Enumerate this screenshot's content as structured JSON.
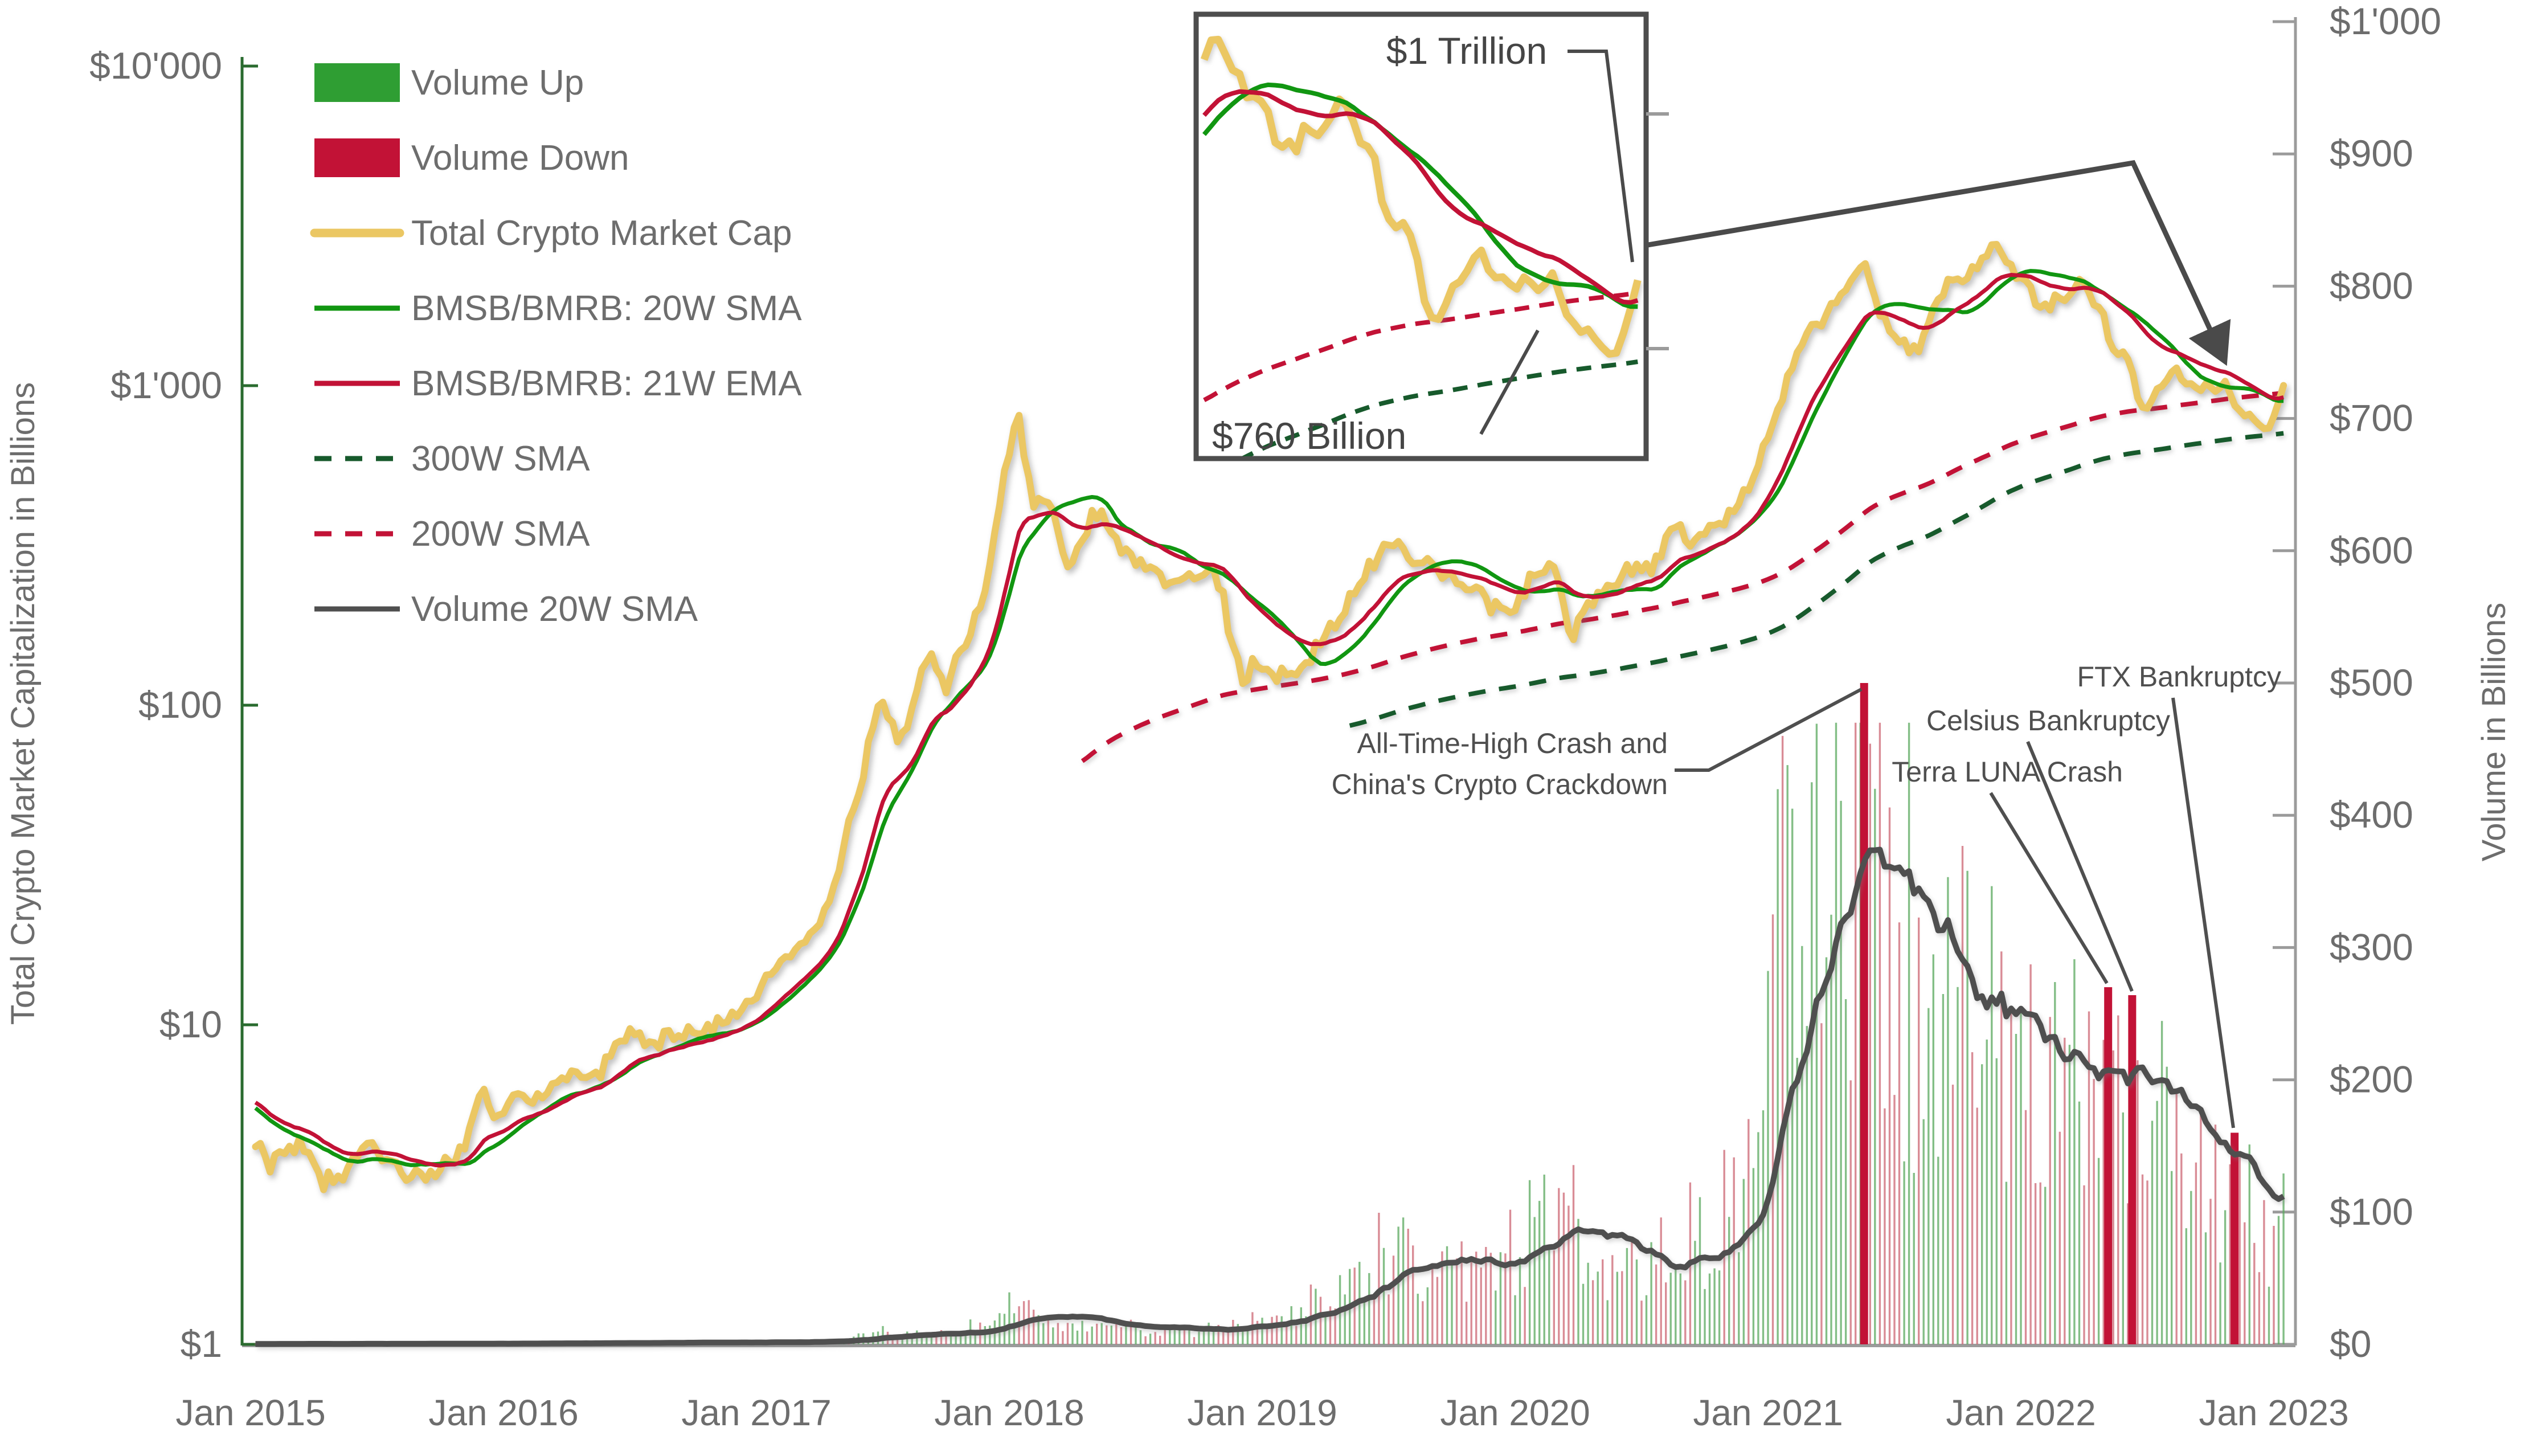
{
  "chart_data": {
    "type": "line",
    "title": "",
    "left_axis": {
      "label": "Total Crypto Market Capitalization in Billions",
      "scale": "log",
      "ticks": [
        {
          "label": "$10'000",
          "value": 10000
        },
        {
          "label": "$1'000",
          "value": 1000
        },
        {
          "label": "$100",
          "value": 100
        },
        {
          "label": "$10",
          "value": 10
        },
        {
          "label": "$1",
          "value": 1
        }
      ]
    },
    "right_axis": {
      "label": "Volume in Billions",
      "scale": "linear",
      "ticks": [
        {
          "label": "$1'000",
          "value": 1000
        },
        {
          "label": "$900",
          "value": 900
        },
        {
          "label": "$800",
          "value": 800
        },
        {
          "label": "$700",
          "value": 700
        },
        {
          "label": "$600",
          "value": 600
        },
        {
          "label": "$500",
          "value": 500
        },
        {
          "label": "$400",
          "value": 400
        },
        {
          "label": "$300",
          "value": 300
        },
        {
          "label": "$200",
          "value": 200
        },
        {
          "label": "$100",
          "value": 100
        },
        {
          "label": "$0",
          "value": 0
        }
      ]
    },
    "x_axis": {
      "ticks": [
        {
          "label": "Jan 2015",
          "t": 2015
        },
        {
          "label": "Jan 2016",
          "t": 2016
        },
        {
          "label": "Jan 2017",
          "t": 2017
        },
        {
          "label": "Jan 2018",
          "t": 2018
        },
        {
          "label": "Jan 2019",
          "t": 2019
        },
        {
          "label": "Jan 2020",
          "t": 2020
        },
        {
          "label": "Jan 2021",
          "t": 2021
        },
        {
          "label": "Jan 2022",
          "t": 2022
        },
        {
          "label": "Jan 2023",
          "t": 2023
        }
      ]
    },
    "legend": [
      {
        "label": "Volume Up",
        "swatch": "rect",
        "color": "#2f9e33"
      },
      {
        "label": "Volume Down",
        "swatch": "rect",
        "color": "#C21236"
      },
      {
        "label": "Total Crypto Market Cap",
        "swatch": "thickline",
        "color": "#EBC763"
      },
      {
        "label": "BMSB/BMRB: 20W SMA",
        "swatch": "line",
        "color": "#119611"
      },
      {
        "label": "BMSB/BMRB: 21W EMA",
        "swatch": "line",
        "color": "#C21236"
      },
      {
        "label": "300W SMA",
        "swatch": "dash",
        "color": "#175A2C"
      },
      {
        "label": "200W SMA",
        "swatch": "dash",
        "color": "#C21236"
      },
      {
        "label": "Volume 20W SMA",
        "swatch": "line",
        "color": "#4F4F4F"
      }
    ],
    "series_notes": {
      "market_cap": "Total crypto market capitalization, $ billions, anchor points [decimal_year, value]; weekly line interpolated",
      "bmsb_20w_sma": "computed 20-week simple moving average of market cap",
      "bmsb_21w_ema": "computed 21-week exponential moving average of market cap",
      "sma_200w": "computed 200-week SMA, drawn from Apr 2018",
      "sma_300w": "computed 300-week SMA, drawn from May 2019",
      "volume": "weekly total volume, $ billions, level anchors [decimal_year, typical_weekly_value]",
      "volume_20w_sma": "computed 20-week SMA of volume"
    },
    "market_cap_anchors": [
      [
        2013.5,
        1.1
      ],
      [
        2013.75,
        1.5
      ],
      [
        2013.95,
        15
      ],
      [
        2014.05,
        13
      ],
      [
        2014.2,
        9.5
      ],
      [
        2014.45,
        11
      ],
      [
        2014.6,
        8.2
      ],
      [
        2014.7,
        6.5
      ],
      [
        2014.85,
        5.2
      ],
      [
        2014.97,
        4.7
      ],
      [
        2015.0,
        4.6
      ],
      [
        2015.08,
        3.6
      ],
      [
        2015.2,
        4.3
      ],
      [
        2015.28,
        3.2
      ],
      [
        2015.38,
        3.5
      ],
      [
        2015.45,
        4.4
      ],
      [
        2015.5,
        3.9
      ],
      [
        2015.6,
        3.5
      ],
      [
        2015.67,
        3.3
      ],
      [
        2015.75,
        3.5
      ],
      [
        2015.8,
        3.9
      ],
      [
        2015.85,
        4.1
      ],
      [
        2015.9,
        6.2
      ],
      [
        2015.97,
        5.2
      ],
      [
        2016.04,
        5.9
      ],
      [
        2016.12,
        5.7
      ],
      [
        2016.2,
        6.6
      ],
      [
        2016.3,
        6.8
      ],
      [
        2016.38,
        7.2
      ],
      [
        2016.45,
        8.9
      ],
      [
        2016.5,
        9.4
      ],
      [
        2016.58,
        8.9
      ],
      [
        2016.7,
        9.2
      ],
      [
        2016.8,
        9.7
      ],
      [
        2016.9,
        10.5
      ],
      [
        2016.97,
        12.0
      ],
      [
        2017.04,
        14.5
      ],
      [
        2017.1,
        15.5
      ],
      [
        2017.17,
        17.5
      ],
      [
        2017.22,
        19.5
      ],
      [
        2017.28,
        24
      ],
      [
        2017.33,
        30
      ],
      [
        2017.37,
        45
      ],
      [
        2017.42,
        60
      ],
      [
        2017.45,
        78
      ],
      [
        2017.48,
        95
      ],
      [
        2017.5,
        108
      ],
      [
        2017.53,
        88
      ],
      [
        2017.56,
        72
      ],
      [
        2017.6,
        90
      ],
      [
        2017.65,
        125
      ],
      [
        2017.7,
        148
      ],
      [
        2017.72,
        128
      ],
      [
        2017.76,
        112
      ],
      [
        2017.8,
        145
      ],
      [
        2017.85,
        170
      ],
      [
        2017.88,
        195
      ],
      [
        2017.9,
        215
      ],
      [
        2017.93,
        300
      ],
      [
        2017.96,
        420
      ],
      [
        2017.99,
        580
      ],
      [
        2018.02,
        740
      ],
      [
        2018.035,
        800
      ],
      [
        2018.05,
        700
      ],
      [
        2018.08,
        480
      ],
      [
        2018.1,
        390
      ],
      [
        2018.13,
        460
      ],
      [
        2018.16,
        420
      ],
      [
        2018.2,
        330
      ],
      [
        2018.23,
        255
      ],
      [
        2018.26,
        290
      ],
      [
        2018.3,
        340
      ],
      [
        2018.33,
        410
      ],
      [
        2018.37,
        385
      ],
      [
        2018.4,
        340
      ],
      [
        2018.45,
        300
      ],
      [
        2018.5,
        290
      ],
      [
        2018.55,
        265
      ],
      [
        2018.6,
        250
      ],
      [
        2018.65,
        240
      ],
      [
        2018.7,
        255
      ],
      [
        2018.75,
        260
      ],
      [
        2018.8,
        255
      ],
      [
        2018.84,
        225
      ],
      [
        2018.87,
        170
      ],
      [
        2018.9,
        150
      ],
      [
        2018.93,
        110
      ],
      [
        2018.96,
        140
      ],
      [
        2019.0,
        128
      ],
      [
        2019.05,
        120
      ],
      [
        2019.1,
        125
      ],
      [
        2019.15,
        133
      ],
      [
        2019.2,
        145
      ],
      [
        2019.25,
        168
      ],
      [
        2019.3,
        180
      ],
      [
        2019.35,
        218
      ],
      [
        2019.4,
        248
      ],
      [
        2019.45,
        288
      ],
      [
        2019.48,
        330
      ],
      [
        2019.52,
        310
      ],
      [
        2019.55,
        340
      ],
      [
        2019.58,
        290
      ],
      [
        2019.62,
        268
      ],
      [
        2019.66,
        292
      ],
      [
        2019.7,
        258
      ],
      [
        2019.75,
        242
      ],
      [
        2019.8,
        222
      ],
      [
        2019.85,
        230
      ],
      [
        2019.9,
        202
      ],
      [
        2019.95,
        194
      ],
      [
        2020.0,
        198
      ],
      [
        2020.05,
        238
      ],
      [
        2020.1,
        262
      ],
      [
        2020.14,
        278
      ],
      [
        2020.18,
        232
      ],
      [
        2020.22,
        155
      ],
      [
        2020.26,
        188
      ],
      [
        2020.3,
        208
      ],
      [
        2020.35,
        228
      ],
      [
        2020.4,
        248
      ],
      [
        2020.45,
        262
      ],
      [
        2020.5,
        265
      ],
      [
        2020.55,
        278
      ],
      [
        2020.6,
        332
      ],
      [
        2020.63,
        365
      ],
      [
        2020.67,
        342
      ],
      [
        2020.72,
        332
      ],
      [
        2020.76,
        356
      ],
      [
        2020.8,
        362
      ],
      [
        2020.85,
        396
      ],
      [
        2020.9,
        442
      ],
      [
        2020.95,
        532
      ],
      [
        2021.0,
        690
      ],
      [
        2021.03,
        850
      ],
      [
        2021.06,
        950
      ],
      [
        2021.09,
        1080
      ],
      [
        2021.12,
        1350
      ],
      [
        2021.16,
        1480
      ],
      [
        2021.2,
        1550
      ],
      [
        2021.23,
        1680
      ],
      [
        2021.27,
        1850
      ],
      [
        2021.3,
        2000
      ],
      [
        2021.33,
        2150
      ],
      [
        2021.36,
        2280
      ],
      [
        2021.38,
        2420
      ],
      [
        2021.4,
        2250
      ],
      [
        2021.42,
        1900
      ],
      [
        2021.45,
        1600
      ],
      [
        2021.48,
        1500
      ],
      [
        2021.52,
        1380
      ],
      [
        2021.55,
        1300
      ],
      [
        2021.58,
        1260
      ],
      [
        2021.62,
        1450
      ],
      [
        2021.65,
        1650
      ],
      [
        2021.68,
        1900
      ],
      [
        2021.72,
        2050
      ],
      [
        2021.75,
        2150
      ],
      [
        2021.78,
        2080
      ],
      [
        2021.82,
        2350
      ],
      [
        2021.85,
        2550
      ],
      [
        2021.87,
        2700
      ],
      [
        2021.89,
        2850
      ],
      [
        2021.91,
        2750
      ],
      [
        2021.93,
        2600
      ],
      [
        2021.96,
        2350
      ],
      [
        2022.0,
        2150
      ],
      [
        2022.04,
        1950
      ],
      [
        2022.08,
        1750
      ],
      [
        2022.12,
        1850
      ],
      [
        2022.16,
        1950
      ],
      [
        2022.2,
        2000
      ],
      [
        2022.24,
        2100
      ],
      [
        2022.28,
        1900
      ],
      [
        2022.32,
        1700
      ],
      [
        2022.36,
        1350
      ],
      [
        2022.4,
        1250
      ],
      [
        2022.44,
        1180
      ],
      [
        2022.47,
        900
      ],
      [
        2022.5,
        870
      ],
      [
        2022.55,
        1000
      ],
      [
        2022.6,
        1120
      ],
      [
        2022.64,
        1070
      ],
      [
        2022.68,
        980
      ],
      [
        2022.72,
        960
      ],
      [
        2022.76,
        1000
      ],
      [
        2022.8,
        990
      ],
      [
        2022.84,
        950
      ],
      [
        2022.86,
        830
      ],
      [
        2022.9,
        810
      ],
      [
        2022.93,
        790
      ],
      [
        2022.96,
        765
      ],
      [
        2023.0,
        800
      ],
      [
        2023.04,
        1000
      ],
      [
        2023.055,
        1030
      ]
    ],
    "volume_level_anchors": [
      [
        2013.5,
        0.2
      ],
      [
        2014.5,
        0.3
      ],
      [
        2015.0,
        0.35
      ],
      [
        2016.0,
        0.6
      ],
      [
        2016.5,
        1.0
      ],
      [
        2017.0,
        1.5
      ],
      [
        2017.4,
        5
      ],
      [
        2017.5,
        9
      ],
      [
        2017.6,
        7
      ],
      [
        2017.8,
        9
      ],
      [
        2017.95,
        22
      ],
      [
        2018.05,
        26
      ],
      [
        2018.1,
        20
      ],
      [
        2018.2,
        15
      ],
      [
        2018.3,
        13
      ],
      [
        2018.45,
        12
      ],
      [
        2018.6,
        10
      ],
      [
        2018.75,
        9
      ],
      [
        2018.85,
        12
      ],
      [
        2018.95,
        15
      ],
      [
        2019.1,
        18
      ],
      [
        2019.25,
        30
      ],
      [
        2019.4,
        55
      ],
      [
        2019.5,
        70
      ],
      [
        2019.6,
        60
      ],
      [
        2019.75,
        48
      ],
      [
        2019.9,
        45
      ],
      [
        2020.0,
        70
      ],
      [
        2020.15,
        90
      ],
      [
        2020.2,
        95
      ],
      [
        2020.3,
        65
      ],
      [
        2020.45,
        60
      ],
      [
        2020.6,
        70
      ],
      [
        2020.75,
        80
      ],
      [
        2020.85,
        95
      ],
      [
        2020.95,
        130
      ],
      [
        2021.05,
        300
      ],
      [
        2021.15,
        340
      ],
      [
        2021.25,
        320
      ],
      [
        2021.33,
        360
      ],
      [
        2021.38,
        460
      ],
      [
        2021.45,
        340
      ],
      [
        2021.55,
        230
      ],
      [
        2021.65,
        235
      ],
      [
        2021.75,
        240
      ],
      [
        2021.85,
        225
      ],
      [
        2021.95,
        205
      ],
      [
        2022.05,
        180
      ],
      [
        2022.15,
        165
      ],
      [
        2022.25,
        155
      ],
      [
        2022.35,
        170
      ],
      [
        2022.42,
        175
      ],
      [
        2022.5,
        150
      ],
      [
        2022.6,
        135
      ],
      [
        2022.7,
        120
      ],
      [
        2022.8,
        110
      ],
      [
        2022.87,
        135
      ],
      [
        2022.95,
        80
      ],
      [
        2023.02,
        85
      ]
    ],
    "special_volume_bars": [
      {
        "t": 2021.02,
        "value": 325,
        "color": "down",
        "wide": false
      },
      {
        "t": 2021.055,
        "value": 460,
        "color": "down",
        "wide": false
      },
      {
        "t": 2021.105,
        "value": 405,
        "color": "up",
        "wide": false
      },
      {
        "t": 2021.18,
        "value": 425,
        "color": "up",
        "wide": false
      },
      {
        "t": 2021.38,
        "value": 500,
        "color": "down",
        "wide": true,
        "event": "All-Time-High Crash and China's Crypto Crackdown"
      },
      {
        "t": 2021.43,
        "value": 420,
        "color": "up",
        "wide": false
      },
      {
        "t": 2022.345,
        "value": 270,
        "color": "down",
        "wide": true,
        "event": "Terra LUNA Crash"
      },
      {
        "t": 2022.44,
        "value": 264,
        "color": "down",
        "wide": true,
        "event": "Celsius Bankruptcy"
      },
      {
        "t": 2022.845,
        "value": 160,
        "color": "down",
        "wide": true,
        "event": "FTX Bankruptcy"
      }
    ],
    "annotations": {
      "ath_line1": "All-Time-High Crash and",
      "ath_line2": "China's Crypto Crackdown",
      "terra": "Terra LUNA Crash",
      "celsius": "Celsius Bankruptcy",
      "ftx": "FTX Bankruptcy",
      "inset_high": "$1 Trillion",
      "inset_low": "$760 Billion"
    },
    "inset": {
      "description": "zoom of late 2021 - Jan 2023 market cap vs moving averages",
      "t_range": [
        2021.85,
        2023.055
      ],
      "value_range": [
        476,
        3050
      ],
      "high_label_value": 1000,
      "low_label_value": 760
    },
    "colors": {
      "market_cap": "#EBC763",
      "sma20w": "#119611",
      "ema21w": "#C21236",
      "sma300w": "#175A2C",
      "sma200w": "#C21236",
      "volume_up": "#5aa85e",
      "volume_down": "#cb5f6e",
      "volume_sma": "#4F4F4F",
      "left_axis": "#2A6B2F",
      "right_axis": "#9b9b9b",
      "tick_text": "#6d6d6d",
      "annotation": "#4f4f4f"
    }
  }
}
